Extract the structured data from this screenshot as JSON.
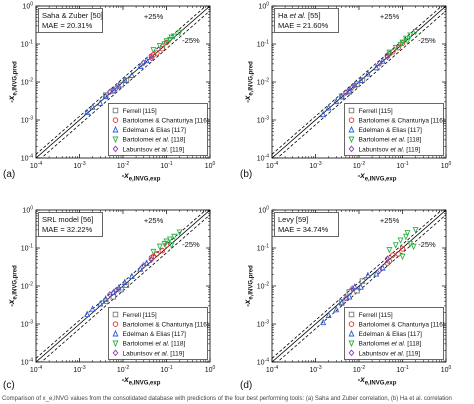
{
  "caption": "Comparison of x_e,INVG values from the consolidated database with predictions of the four best performing tools: (a) Saha and Zuber correlation, (b) Ha et al. correlation",
  "common": {
    "xlabel": "-x",
    "xlabel_sub": "e,INVG,exp",
    "ylabel": "-x",
    "ylabel_sub": "e,INVG,pred",
    "band_plus": "+25%",
    "band_minus": "-25%"
  },
  "legend": [
    {
      "text": "Ferrell [115]",
      "italic_part": "",
      "after": "",
      "marker": "square",
      "color": "#7a7a7a"
    },
    {
      "text": "Bartolomei & Chanturiya [116]",
      "italic_part": "",
      "after": "",
      "marker": "circle",
      "color": "#e0302a"
    },
    {
      "text": "Edelman & Elias [117]",
      "italic_part": "",
      "after": "",
      "marker": "triangle-up",
      "color": "#2f5fd8"
    },
    {
      "text": "Bartolomei ",
      "italic_part": "et al.",
      "after": " [118]",
      "marker": "triangle-down",
      "color": "#2fb34a"
    },
    {
      "text": "Labuntsov ",
      "italic_part": "et al.",
      "after": " [119]",
      "marker": "diamond",
      "color": "#8a3fb0"
    }
  ],
  "chart_data": [
    {
      "type": "scatter",
      "panel_label": "(a)",
      "annotation": "Saha & Zuber [50]",
      "mae": "MAE = 20.31%",
      "xlim": [
        0.0001,
        1
      ],
      "ylim": [
        0.0001,
        1
      ],
      "log_x": true,
      "log_y": true,
      "x_ticks": [
        "10^-4",
        "10^-3",
        "10^-2",
        "10^-1",
        "10^0"
      ],
      "y_ticks": [
        "10^-4",
        "10^-3",
        "10^-2",
        "10^-1",
        "10^0"
      ],
      "series": [
        {
          "name": "Ferrell [115]",
          "points": [
            [
              0.004,
              0.0045
            ],
            [
              0.006,
              0.0058
            ],
            [
              0.009,
              0.0085
            ],
            [
              0.012,
              0.011
            ]
          ]
        },
        {
          "name": "Bartolomei & Chanturiya [116]",
          "points": [
            [
              0.045,
              0.048
            ],
            [
              0.06,
              0.058
            ],
            [
              0.08,
              0.075
            ],
            [
              0.1,
              0.11
            ],
            [
              0.05,
              0.052
            ]
          ]
        },
        {
          "name": "Edelman & Elias [117]",
          "points": [
            [
              0.0015,
              0.0016
            ],
            [
              0.002,
              0.0022
            ],
            [
              0.003,
              0.0028
            ],
            [
              0.004,
              0.0042
            ],
            [
              0.006,
              0.0062
            ],
            [
              0.008,
              0.0079
            ],
            [
              0.011,
              0.0115
            ],
            [
              0.016,
              0.015
            ],
            [
              0.025,
              0.026
            ],
            [
              0.035,
              0.037
            ]
          ]
        },
        {
          "name": "Bartolomei et al. [118]",
          "points": [
            [
              0.05,
              0.07
            ],
            [
              0.07,
              0.09
            ],
            [
              0.09,
              0.1
            ],
            [
              0.12,
              0.13
            ],
            [
              0.15,
              0.16
            ],
            [
              0.2,
              0.2
            ],
            [
              0.1,
              0.12
            ],
            [
              0.13,
              0.15
            ]
          ]
        },
        {
          "name": "Labuntsov et al. [119]",
          "points": [
            [
              0.005,
              0.0055
            ],
            [
              0.007,
              0.0069
            ],
            [
              0.03,
              0.032
            ],
            [
              0.045,
              0.043
            ]
          ]
        }
      ]
    },
    {
      "type": "scatter",
      "panel_label": "(b)",
      "annotation": "Ha et al. [55]",
      "mae": "MAE = 21.60%",
      "xlim": [
        0.0001,
        1
      ],
      "ylim": [
        0.0001,
        1
      ],
      "log_x": true,
      "log_y": true,
      "x_ticks": [
        "10^-4",
        "10^-3",
        "10^-2",
        "10^-1",
        "10^0"
      ],
      "y_ticks": [
        "10^-4",
        "10^-3",
        "10^-2",
        "10^-1",
        "10^0"
      ],
      "series": [
        {
          "name": "Ferrell [115]",
          "points": [
            [
              0.004,
              0.0042
            ],
            [
              0.006,
              0.0055
            ],
            [
              0.009,
              0.0088
            ],
            [
              0.012,
              0.0112
            ]
          ]
        },
        {
          "name": "Bartolomei & Chanturiya [116]",
          "points": [
            [
              0.045,
              0.05
            ],
            [
              0.06,
              0.062
            ],
            [
              0.08,
              0.08
            ],
            [
              0.1,
              0.105
            ],
            [
              0.05,
              0.055
            ]
          ]
        },
        {
          "name": "Edelman & Elias [117]",
          "points": [
            [
              0.0015,
              0.0014
            ],
            [
              0.002,
              0.0021
            ],
            [
              0.003,
              0.0031
            ],
            [
              0.004,
              0.0041
            ],
            [
              0.006,
              0.0059
            ],
            [
              0.008,
              0.0084
            ],
            [
              0.011,
              0.011
            ],
            [
              0.016,
              0.0165
            ],
            [
              0.025,
              0.024
            ],
            [
              0.035,
              0.036
            ]
          ]
        },
        {
          "name": "Bartolomei et al. [118]",
          "points": [
            [
              0.05,
              0.06
            ],
            [
              0.07,
              0.08
            ],
            [
              0.09,
              0.095
            ],
            [
              0.12,
              0.14
            ],
            [
              0.15,
              0.17
            ],
            [
              0.2,
              0.21
            ],
            [
              0.1,
              0.11
            ],
            [
              0.13,
              0.12
            ]
          ]
        },
        {
          "name": "Labuntsov et al. [119]",
          "points": [
            [
              0.005,
              0.0052
            ],
            [
              0.007,
              0.0072
            ],
            [
              0.03,
              0.031
            ],
            [
              0.045,
              0.046
            ]
          ]
        }
      ]
    },
    {
      "type": "scatter",
      "panel_label": "(c)",
      "annotation": "SRL model [56]",
      "mae": "MAE = 32.22%",
      "xlim": [
        0.0001,
        1
      ],
      "ylim": [
        0.0001,
        1
      ],
      "log_x": true,
      "log_y": true,
      "x_ticks": [
        "10^-4",
        "10^-3",
        "10^-2",
        "10^-1",
        "10^0"
      ],
      "y_ticks": [
        "10^-4",
        "10^-3",
        "10^-2",
        "10^-1",
        "10^0"
      ],
      "series": [
        {
          "name": "Ferrell [115]",
          "points": [
            [
              0.004,
              0.004
            ],
            [
              0.006,
              0.0052
            ],
            [
              0.009,
              0.008
            ],
            [
              0.012,
              0.0105
            ]
          ]
        },
        {
          "name": "Bartolomei & Chanturiya [116]",
          "points": [
            [
              0.045,
              0.055
            ],
            [
              0.06,
              0.07
            ],
            [
              0.08,
              0.085
            ],
            [
              0.1,
              0.12
            ],
            [
              0.05,
              0.06
            ]
          ]
        },
        {
          "name": "Edelman & Elias [117]",
          "points": [
            [
              0.0015,
              0.0018
            ],
            [
              0.002,
              0.0025
            ],
            [
              0.003,
              0.0034
            ],
            [
              0.004,
              0.0046
            ],
            [
              0.006,
              0.0068
            ],
            [
              0.008,
              0.009
            ],
            [
              0.011,
              0.0125
            ],
            [
              0.016,
              0.018
            ],
            [
              0.025,
              0.028
            ],
            [
              0.035,
              0.04
            ]
          ]
        },
        {
          "name": "Bartolomei et al. [118]",
          "points": [
            [
              0.05,
              0.08
            ],
            [
              0.07,
              0.11
            ],
            [
              0.09,
              0.13
            ],
            [
              0.12,
              0.17
            ],
            [
              0.15,
              0.2
            ],
            [
              0.2,
              0.26
            ],
            [
              0.1,
              0.15
            ],
            [
              0.13,
              0.12
            ]
          ]
        },
        {
          "name": "Labuntsov et al. [119]",
          "points": [
            [
              0.005,
              0.006
            ],
            [
              0.007,
              0.0078
            ],
            [
              0.03,
              0.035
            ],
            [
              0.045,
              0.05
            ]
          ]
        }
      ]
    },
    {
      "type": "scatter",
      "panel_label": "(d)",
      "annotation": "Levy [59]",
      "mae": "MAE = 34.74%",
      "xlim": [
        0.0001,
        1
      ],
      "ylim": [
        0.0001,
        1
      ],
      "log_x": true,
      "log_y": true,
      "x_ticks": [
        "10^-4",
        "10^-3",
        "10^-2",
        "10^-1",
        "10^0"
      ],
      "y_ticks": [
        "10^-4",
        "10^-3",
        "10^-2",
        "10^-1",
        "10^0"
      ],
      "series": [
        {
          "name": "Ferrell [115]",
          "points": [
            [
              0.004,
              0.0038
            ],
            [
              0.006,
              0.007
            ],
            [
              0.009,
              0.0075
            ],
            [
              0.012,
              0.0135
            ]
          ]
        },
        {
          "name": "Bartolomei & Chanturiya [116]",
          "points": [
            [
              0.045,
              0.04
            ],
            [
              0.06,
              0.065
            ],
            [
              0.08,
              0.07
            ],
            [
              0.1,
              0.095
            ],
            [
              0.05,
              0.045
            ]
          ]
        },
        {
          "name": "Edelman & Elias [117]",
          "points": [
            [
              0.0015,
              0.0011
            ],
            [
              0.002,
              0.0017
            ],
            [
              0.003,
              0.0024
            ],
            [
              0.004,
              0.0036
            ],
            [
              0.006,
              0.0052
            ],
            [
              0.008,
              0.0095
            ],
            [
              0.011,
              0.0095
            ],
            [
              0.016,
              0.019
            ],
            [
              0.025,
              0.021
            ],
            [
              0.035,
              0.03
            ]
          ]
        },
        {
          "name": "Bartolomei et al. [118]",
          "points": [
            [
              0.05,
              0.09
            ],
            [
              0.07,
              0.12
            ],
            [
              0.09,
              0.16
            ],
            [
              0.12,
              0.2
            ],
            [
              0.15,
              0.13
            ],
            [
              0.2,
              0.3
            ],
            [
              0.1,
              0.06
            ],
            [
              0.13,
              0.25
            ],
            [
              0.18,
              0.11
            ]
          ]
        },
        {
          "name": "Labuntsov et al. [119]",
          "points": [
            [
              0.005,
              0.0048
            ],
            [
              0.007,
              0.0085
            ],
            [
              0.03,
              0.026
            ],
            [
              0.045,
              0.052
            ]
          ]
        }
      ]
    }
  ]
}
